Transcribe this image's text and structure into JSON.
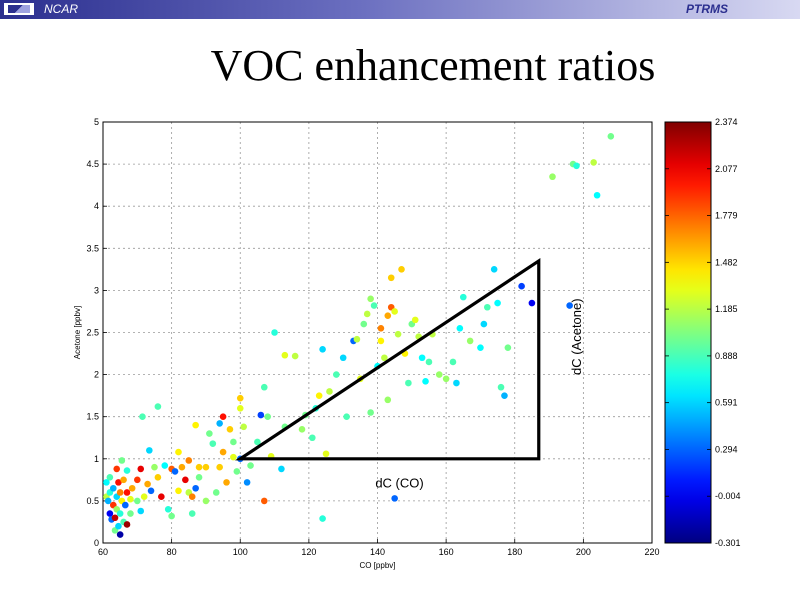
{
  "header": {
    "org": "NCAR",
    "project": "PTRMS"
  },
  "slide": {
    "title": "VOC enhancement ratios"
  },
  "chart_data": {
    "type": "scatter",
    "xlabel": "CO [ppbv]",
    "ylabel": "Acetone [ppbv]",
    "xlim": [
      60,
      220
    ],
    "ylim": [
      0,
      5
    ],
    "xticks": [
      "60",
      "80",
      "100",
      "120",
      "140",
      "160",
      "180",
      "200",
      "220"
    ],
    "yticks": [
      "0",
      "0.5",
      "1",
      "1.5",
      "2",
      "2.5",
      "3",
      "3.5",
      "4",
      "4.5",
      "5"
    ],
    "grid": true,
    "colorbar": {
      "min": -0.301,
      "max": 2.374,
      "ticks": [
        "2.374",
        "2.077",
        "1.779",
        "1.482",
        "1.185",
        "0.888",
        "0.591",
        "0.294",
        "-0.004",
        "-0.301"
      ],
      "colormap": "jet"
    },
    "annotations": {
      "triangle": {
        "vertices": [
          [
            100,
            1.0
          ],
          [
            187,
            1.0
          ],
          [
            187,
            3.35
          ]
        ]
      },
      "dx_label": "dC (CO)",
      "dy_label": "dC (Acetone)"
    },
    "points": [
      [
        61,
        0.72,
        0.7
      ],
      [
        61,
        0.55,
        1.2
      ],
      [
        61.5,
        0.5,
        0.5
      ],
      [
        62,
        0.35,
        0.0
      ],
      [
        62,
        0.6,
        0.8
      ],
      [
        62.5,
        0.28,
        0.3
      ],
      [
        62,
        0.78,
        0.9
      ],
      [
        63,
        0.45,
        1.9
      ],
      [
        63,
        0.65,
        0.5
      ],
      [
        63.5,
        0.3,
        2.2
      ],
      [
        63.5,
        0.15,
        1.0
      ],
      [
        64,
        0.88,
        1.9
      ],
      [
        64,
        0.55,
        0.6
      ],
      [
        64,
        0.4,
        1.1
      ],
      [
        64.5,
        0.2,
        0.6
      ],
      [
        64.5,
        0.72,
        2.0
      ],
      [
        65,
        0.6,
        1.7
      ],
      [
        65,
        0.35,
        0.8
      ],
      [
        65,
        0.1,
        -0.2
      ],
      [
        65.5,
        0.98,
        1.0
      ],
      [
        65.5,
        0.5,
        1.4
      ],
      [
        66,
        0.25,
        0.9
      ],
      [
        66,
        0.75,
        1.6
      ],
      [
        66.5,
        0.45,
        0.3
      ],
      [
        67,
        0.86,
        0.8
      ],
      [
        67,
        0.6,
        2.0
      ],
      [
        67,
        0.22,
        2.3
      ],
      [
        68,
        0.52,
        1.3
      ],
      [
        68,
        0.35,
        1.0
      ],
      [
        68.5,
        0.65,
        1.6
      ],
      [
        70,
        0.75,
        1.9
      ],
      [
        70,
        0.5,
        1.0
      ],
      [
        71,
        0.38,
        0.6
      ],
      [
        71,
        0.88,
        2.1
      ],
      [
        71.5,
        1.5,
        0.9
      ],
      [
        72,
        0.55,
        1.3
      ],
      [
        73,
        0.7,
        1.6
      ],
      [
        73.5,
        1.1,
        0.6
      ],
      [
        74,
        0.62,
        0.3
      ],
      [
        75,
        0.9,
        1.1
      ],
      [
        76,
        0.78,
        1.5
      ],
      [
        76,
        1.62,
        0.9
      ],
      [
        77,
        0.55,
        2.1
      ],
      [
        78,
        0.92,
        0.7
      ],
      [
        79,
        0.4,
        0.8
      ],
      [
        80,
        0.88,
        1.8
      ],
      [
        80,
        0.32,
        1.0
      ],
      [
        81,
        0.85,
        0.3
      ],
      [
        82,
        0.62,
        1.4
      ],
      [
        82,
        1.08,
        1.4
      ],
      [
        83,
        0.9,
        1.6
      ],
      [
        84,
        0.75,
        2.1
      ],
      [
        85,
        0.6,
        1.2
      ],
      [
        85,
        0.98,
        1.7
      ],
      [
        86,
        0.35,
        0.9
      ],
      [
        86,
        0.55,
        1.7
      ],
      [
        87,
        0.65,
        0.3
      ],
      [
        87,
        1.4,
        1.4
      ],
      [
        88,
        0.9,
        1.5
      ],
      [
        88,
        0.78,
        1.0
      ],
      [
        90,
        0.5,
        1.1
      ],
      [
        90,
        0.9,
        1.5
      ],
      [
        91,
        1.3,
        1.0
      ],
      [
        92,
        1.18,
        0.9
      ],
      [
        93,
        0.6,
        1.0
      ],
      [
        94,
        0.9,
        1.5
      ],
      [
        94,
        1.42,
        0.5
      ],
      [
        95,
        1.5,
        2.0
      ],
      [
        95,
        1.08,
        1.6
      ],
      [
        96,
        0.72,
        1.6
      ],
      [
        97,
        1.35,
        1.5
      ],
      [
        98,
        1.02,
        1.3
      ],
      [
        98,
        1.2,
        1.0
      ],
      [
        99,
        0.85,
        1.0
      ],
      [
        100,
        1.0,
        0.3
      ],
      [
        100,
        1.6,
        1.3
      ],
      [
        100,
        1.72,
        1.5
      ],
      [
        101,
        1.38,
        1.2
      ],
      [
        102,
        0.72,
        0.4
      ],
      [
        103,
        0.92,
        1.0
      ],
      [
        105,
        1.2,
        0.9
      ],
      [
        106,
        1.52,
        0.2
      ],
      [
        107,
        1.85,
        0.9
      ],
      [
        107,
        0.5,
        1.8
      ],
      [
        108,
        1.5,
        1.0
      ],
      [
        109,
        1.03,
        1.3
      ],
      [
        110,
        2.5,
        0.8
      ],
      [
        112,
        0.88,
        0.6
      ],
      [
        113,
        1.38,
        1.0
      ],
      [
        113,
        2.23,
        1.3
      ],
      [
        116,
        2.22,
        1.2
      ],
      [
        118,
        1.35,
        1.1
      ],
      [
        119,
        1.52,
        1.0
      ],
      [
        121,
        1.25,
        0.9
      ],
      [
        122,
        1.6,
        0.8
      ],
      [
        123,
        1.75,
        1.4
      ],
      [
        124,
        2.3,
        0.6
      ],
      [
        124,
        0.29,
        0.8
      ],
      [
        125,
        1.06,
        1.3
      ],
      [
        126,
        1.8,
        1.2
      ],
      [
        128,
        2.0,
        0.9
      ],
      [
        130,
        2.2,
        0.6
      ],
      [
        131,
        1.5,
        0.9
      ],
      [
        133,
        2.4,
        0.3
      ],
      [
        134,
        2.42,
        1.2
      ],
      [
        135,
        1.95,
        1.3
      ],
      [
        136,
        2.6,
        1.0
      ],
      [
        137,
        2.72,
        1.2
      ],
      [
        138,
        2.9,
        1.1
      ],
      [
        138,
        1.55,
        1.0
      ],
      [
        139,
        2.82,
        0.9
      ],
      [
        140,
        2.1,
        0.7
      ],
      [
        141,
        2.4,
        1.4
      ],
      [
        141,
        2.55,
        1.7
      ],
      [
        142,
        2.2,
        1.2
      ],
      [
        143,
        2.7,
        1.6
      ],
      [
        143,
        1.7,
        1.1
      ],
      [
        144,
        3.15,
        1.5
      ],
      [
        144,
        2.8,
        1.8
      ],
      [
        145,
        2.75,
        1.3
      ],
      [
        146,
        2.48,
        1.2
      ],
      [
        147,
        3.25,
        1.5
      ],
      [
        148,
        2.25,
        1.4
      ],
      [
        149,
        1.9,
        0.9
      ],
      [
        150,
        2.6,
        1.0
      ],
      [
        151,
        2.65,
        1.3
      ],
      [
        152,
        2.45,
        1.2
      ],
      [
        153,
        2.2,
        0.7
      ],
      [
        154,
        1.92,
        0.7
      ],
      [
        155,
        2.15,
        0.9
      ],
      [
        156,
        2.48,
        1.2
      ],
      [
        158,
        2.0,
        1.1
      ],
      [
        160,
        1.95,
        1.1
      ],
      [
        162,
        2.15,
        0.9
      ],
      [
        163,
        1.9,
        0.6
      ],
      [
        164,
        2.55,
        0.7
      ],
      [
        165,
        2.92,
        0.8
      ],
      [
        167,
        2.4,
        1.1
      ],
      [
        170,
        2.32,
        0.7
      ],
      [
        171,
        2.6,
        0.6
      ],
      [
        172,
        2.8,
        0.9
      ],
      [
        174,
        3.25,
        0.6
      ],
      [
        175,
        2.85,
        0.7
      ],
      [
        176,
        1.85,
        0.9
      ],
      [
        177,
        1.75,
        0.5
      ],
      [
        178,
        2.32,
        1.0
      ],
      [
        182,
        3.05,
        0.2
      ],
      [
        185,
        2.85,
        0.0
      ],
      [
        196,
        2.82,
        0.3
      ],
      [
        197,
        4.5,
        1.0
      ],
      [
        198,
        4.48,
        0.8
      ],
      [
        191,
        4.35,
        1.1
      ],
      [
        203,
        4.52,
        1.2
      ],
      [
        204,
        4.13,
        0.7
      ],
      [
        208,
        4.83,
        1.0
      ],
      [
        145,
        0.53,
        0.3
      ]
    ]
  }
}
